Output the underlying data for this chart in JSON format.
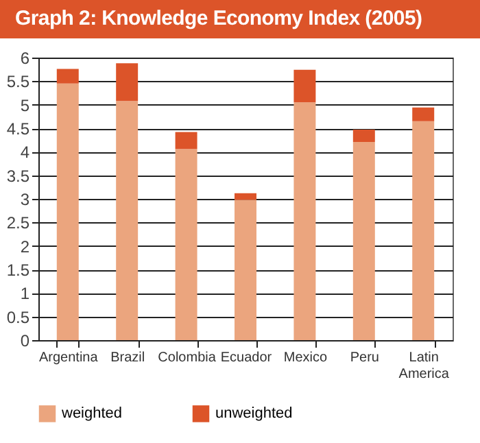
{
  "chart_data": {
    "type": "bar",
    "title": "Graph 2: Knowledge Economy Index (2005)",
    "categories": [
      "Argentina",
      "Brazil",
      "Colombia",
      "Ecuador",
      "Mexico",
      "Peru",
      "Latin America"
    ],
    "series": [
      {
        "name": "weighted",
        "color": "#eba57e",
        "values": [
          5.45,
          5.08,
          4.06,
          2.98,
          5.05,
          4.21,
          4.65
        ]
      },
      {
        "name": "unweighted",
        "color": "#dc5429",
        "values": [
          0.31,
          0.8,
          0.36,
          0.14,
          0.69,
          0.26,
          0.29
        ]
      }
    ],
    "stacked": true,
    "ylim": [
      0,
      6
    ],
    "yticks": [
      0,
      0.5,
      1,
      1.5,
      2,
      2.5,
      3,
      3.5,
      4,
      4.5,
      5,
      5.5,
      6
    ],
    "grid": "y",
    "legend": "bottom"
  }
}
